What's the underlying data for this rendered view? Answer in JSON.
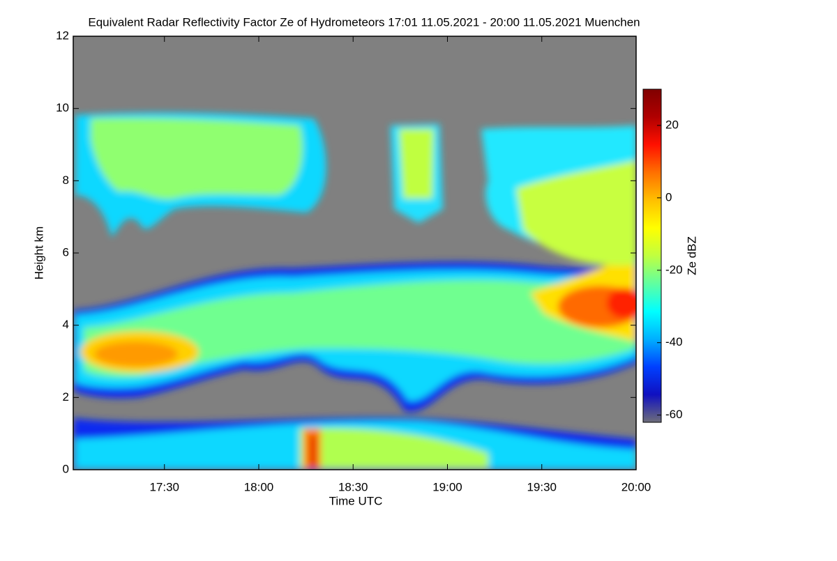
{
  "chart_data": {
    "type": "heatmap",
    "title": "Equivalent Radar Reflectivity Factor Ze of Hydrometeors    17:01 11.05.2021 - 20:00 11.05.2021 Muenchen",
    "x_label": "Time UTC",
    "y_label": "Height km",
    "xlim": [
      1021,
      1200
    ],
    "xticks": [
      {
        "value": 1050,
        "label": "17:30"
      },
      {
        "value": 1080,
        "label": "18:00"
      },
      {
        "value": 1110,
        "label": "18:30"
      },
      {
        "value": 1140,
        "label": "19:00"
      },
      {
        "value": 1170,
        "label": "19:30"
      },
      {
        "value": 1200,
        "label": "20:00"
      }
    ],
    "ylim": [
      0,
      12
    ],
    "yticks": [
      0,
      2,
      4,
      6,
      8,
      10,
      12
    ],
    "background": "#808080",
    "colorbar": {
      "label": "Ze dBZ",
      "lim": [
        -62,
        30
      ],
      "ticks": [
        -60,
        -40,
        -20,
        0,
        20
      ],
      "colors": [
        "#6e6e7a",
        "#1010c0",
        "#0040ff",
        "#00b0ff",
        "#00ffff",
        "#60ffa0",
        "#c0ff40",
        "#ffff00",
        "#ffc000",
        "#ff7000",
        "#ff1000",
        "#b00000",
        "#800000"
      ]
    }
  }
}
